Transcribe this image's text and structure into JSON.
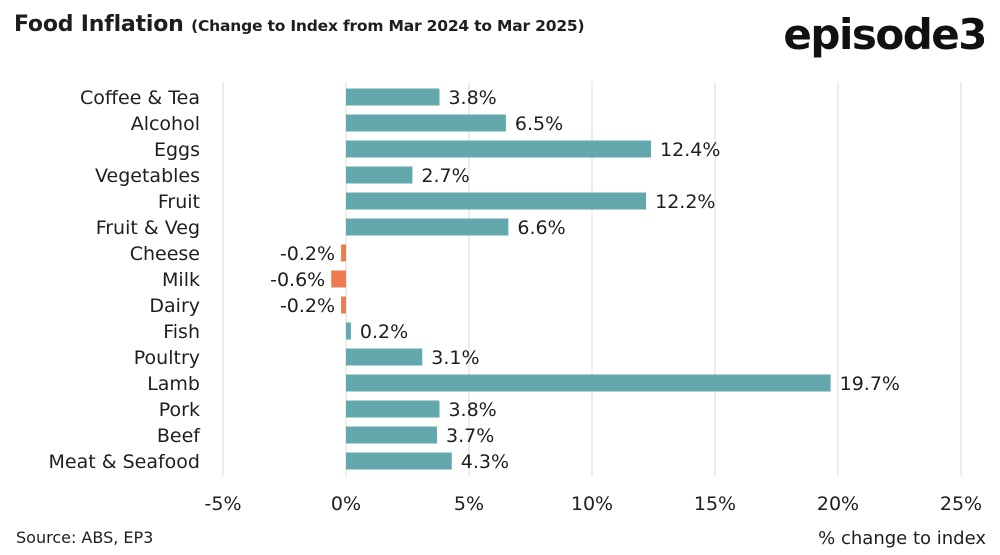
{
  "header": {
    "title_main": "Food Inflation",
    "title_sub": "(Change to Index from Mar 2024 to Mar 2025)",
    "logo_text": "episode3"
  },
  "footer": {
    "source": "Source: ABS, EP3",
    "xlabel": "% change to index"
  },
  "colors": {
    "positive": "#62a8ad",
    "negative": "#ec7b50",
    "grid": "#dcdcd0"
  },
  "chart_data": {
    "type": "bar",
    "orientation": "horizontal",
    "title": "Food Inflation (Change to Index from Mar 2024 to Mar 2025)",
    "xlabel": "% change to index",
    "ylabel": "",
    "xlim": [
      -5,
      25
    ],
    "xticks": [
      -5,
      0,
      5,
      10,
      15,
      20,
      25
    ],
    "xtick_labels": [
      "-5%",
      "0%",
      "5%",
      "10%",
      "15%",
      "20%",
      "25%"
    ],
    "grid": "vertical",
    "categories": [
      "Coffee & Tea",
      "Alcohol",
      "Eggs",
      "Vegetables",
      "Fruit",
      "Fruit & Veg",
      "Cheese",
      "Milk",
      "Dairy",
      "Fish",
      "Poultry",
      "Lamb",
      "Pork",
      "Beef",
      "Meat & Seafood"
    ],
    "values": [
      3.8,
      6.5,
      12.4,
      2.7,
      12.2,
      6.6,
      -0.2,
      -0.6,
      -0.2,
      0.2,
      3.1,
      19.7,
      3.8,
      3.7,
      4.3
    ],
    "value_labels": [
      "3.8%",
      "6.5%",
      "12.4%",
      "2.7%",
      "12.2%",
      "6.6%",
      "-0.2%",
      "-0.6%",
      "-0.2%",
      "0.2%",
      "3.1%",
      "19.7%",
      "3.8%",
      "3.7%",
      "4.3%"
    ]
  }
}
